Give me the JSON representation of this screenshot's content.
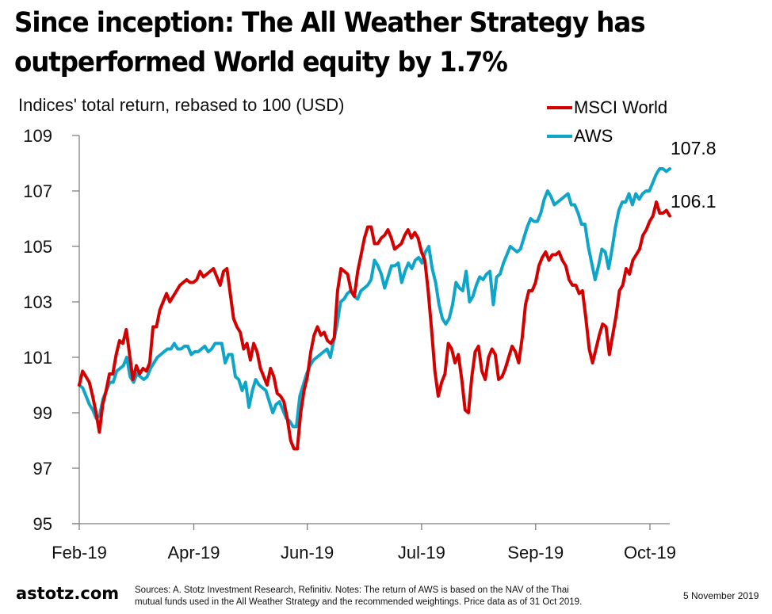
{
  "header": {
    "title_line1": "Since inception: The All Weather Strategy has",
    "title_line2": "outperformed World equity by 1.7%"
  },
  "footer": {
    "brand": "astotz.com",
    "note_line1": "Sources: A. Stotz Investment Research, Refinitiv. Notes: The return of AWS is based on the NAV of the Thai",
    "note_line2": "mutual funds used in the All Weather Strategy and the recommended weightings. Price data as of 31 Oct 2019.",
    "date": "5 November 2019"
  },
  "chart_data": {
    "type": "line",
    "title": "Since inception: The All Weather Strategy has outperformed World equity by 1.7%",
    "subtitle": "Indices' total return, rebased to 100 (USD)",
    "xlabel": "",
    "ylabel": "",
    "x_range": [
      "Feb-19",
      "Oct-19"
    ],
    "x_ticks": [
      "Feb-19",
      "Apr-19",
      "Jun-19",
      "Jul-19",
      "Sep-19",
      "Oct-19"
    ],
    "x_tick_positions": [
      0,
      0.1937,
      0.3856,
      0.5789,
      0.7718,
      0.9651
    ],
    "ylim": [
      95,
      109
    ],
    "y_ticks": [
      95,
      97,
      99,
      101,
      103,
      105,
      107,
      109
    ],
    "grid": false,
    "legend_position": "top-right",
    "end_labels": [
      {
        "series": "AWS",
        "text": "107.8"
      },
      {
        "series": "MSCI World",
        "text": "106.1"
      }
    ],
    "series": [
      {
        "name": "MSCI World",
        "color": "#d40000",
        "values": [
          100.0,
          100.5,
          100.3,
          100.1,
          99.6,
          99.0,
          98.3,
          99.3,
          99.8,
          100.4,
          100.4,
          101.1,
          101.6,
          101.5,
          102.0,
          101.1,
          100.2,
          100.7,
          100.4,
          100.6,
          100.5,
          100.8,
          102.1,
          102.1,
          102.7,
          103.0,
          103.3,
          103.0,
          103.2,
          103.4,
          103.6,
          103.7,
          103.8,
          103.7,
          103.7,
          103.8,
          104.1,
          103.9,
          104.0,
          104.1,
          104.2,
          103.9,
          103.6,
          104.1,
          104.2,
          103.3,
          102.4,
          102.1,
          101.9,
          101.3,
          101.5,
          100.9,
          101.5,
          101.2,
          100.6,
          100.3,
          100.0,
          100.6,
          100.3,
          99.7,
          99.6,
          99.4,
          98.8,
          98.0,
          97.7,
          97.7,
          99.0,
          99.8,
          100.3,
          101.2,
          101.8,
          102.1,
          101.8,
          101.9,
          101.6,
          101.5,
          101.7,
          103.4,
          104.2,
          104.1,
          104.0,
          103.4,
          103.2,
          104.1,
          104.7,
          105.3,
          105.7,
          105.7,
          105.1,
          105.1,
          105.3,
          105.4,
          105.6,
          105.3,
          104.9,
          105.0,
          105.1,
          105.4,
          105.6,
          105.3,
          105.5,
          105.3,
          104.8,
          104.5,
          103.4,
          102.0,
          100.5,
          99.6,
          100.1,
          100.4,
          101.5,
          101.3,
          100.8,
          101.1,
          100.2,
          99.1,
          99.0,
          100.3,
          101.2,
          101.4,
          100.5,
          100.2,
          101.0,
          101.3,
          101.1,
          100.2,
          100.3,
          100.6,
          101.0,
          101.4,
          101.2,
          100.8,
          101.7,
          102.9,
          103.4,
          103.4,
          103.7,
          104.3,
          104.6,
          104.8,
          104.5,
          104.7,
          104.7,
          104.8,
          104.5,
          104.3,
          103.8,
          103.6,
          103.6,
          103.3,
          103.4,
          102.4,
          101.3,
          100.8,
          101.3,
          101.8,
          102.2,
          102.1,
          101.1,
          101.8,
          102.5,
          103.4,
          103.6,
          104.2,
          104.0,
          104.5,
          104.7,
          104.9,
          105.4,
          105.6,
          105.9,
          106.1,
          106.6,
          106.2,
          106.2,
          106.3,
          106.1
        ]
      },
      {
        "name": "AWS",
        "color": "#0ea5c9",
        "values": [
          100.0,
          99.9,
          99.6,
          99.3,
          99.1,
          98.8,
          98.9,
          99.5,
          99.8,
          100.1,
          100.1,
          100.5,
          100.6,
          100.7,
          101.0,
          100.3,
          100.1,
          100.4,
          100.3,
          100.2,
          100.3,
          100.6,
          100.8,
          101.0,
          101.1,
          101.2,
          101.3,
          101.3,
          101.5,
          101.3,
          101.3,
          101.4,
          101.4,
          101.1,
          101.2,
          101.2,
          101.3,
          101.4,
          101.2,
          101.3,
          101.5,
          101.5,
          101.5,
          100.8,
          101.1,
          101.1,
          100.3,
          100.2,
          99.8,
          100.1,
          99.2,
          99.8,
          100.2,
          100.0,
          99.9,
          99.8,
          99.4,
          99.0,
          99.3,
          99.4,
          99.1,
          98.8,
          98.7,
          98.5,
          98.5,
          99.6,
          100.0,
          100.4,
          100.7,
          100.9,
          101.0,
          101.1,
          101.2,
          101.3,
          101.0,
          101.6,
          102.2,
          103.0,
          103.1,
          103.3,
          103.4,
          103.2,
          103.1,
          103.4,
          103.5,
          103.6,
          103.8,
          104.5,
          104.3,
          104.0,
          103.5,
          103.9,
          104.3,
          104.3,
          104.4,
          103.7,
          104.1,
          104.4,
          104.2,
          104.5,
          104.6,
          104.4,
          104.8,
          105.0,
          104.2,
          103.7,
          102.9,
          102.4,
          102.2,
          102.4,
          102.9,
          103.7,
          103.5,
          103.4,
          104.1,
          103.0,
          103.2,
          103.6,
          103.9,
          103.8,
          104.0,
          104.1,
          102.9,
          103.9,
          104.0,
          104.4,
          104.7,
          105.0,
          104.9,
          104.8,
          104.9,
          105.3,
          105.7,
          106.0,
          105.9,
          105.9,
          106.2,
          106.7,
          107.0,
          106.8,
          106.5,
          106.6,
          106.7,
          106.8,
          106.9,
          106.5,
          106.5,
          106.2,
          105.8,
          105.8,
          105.0,
          104.4,
          103.8,
          104.3,
          104.9,
          104.8,
          104.2,
          104.9,
          105.7,
          106.3,
          106.6,
          106.6,
          106.9,
          106.5,
          106.9,
          106.7,
          106.9,
          107.0,
          107.0,
          107.3,
          107.6,
          107.8,
          107.8,
          107.7,
          107.8
        ]
      }
    ]
  }
}
